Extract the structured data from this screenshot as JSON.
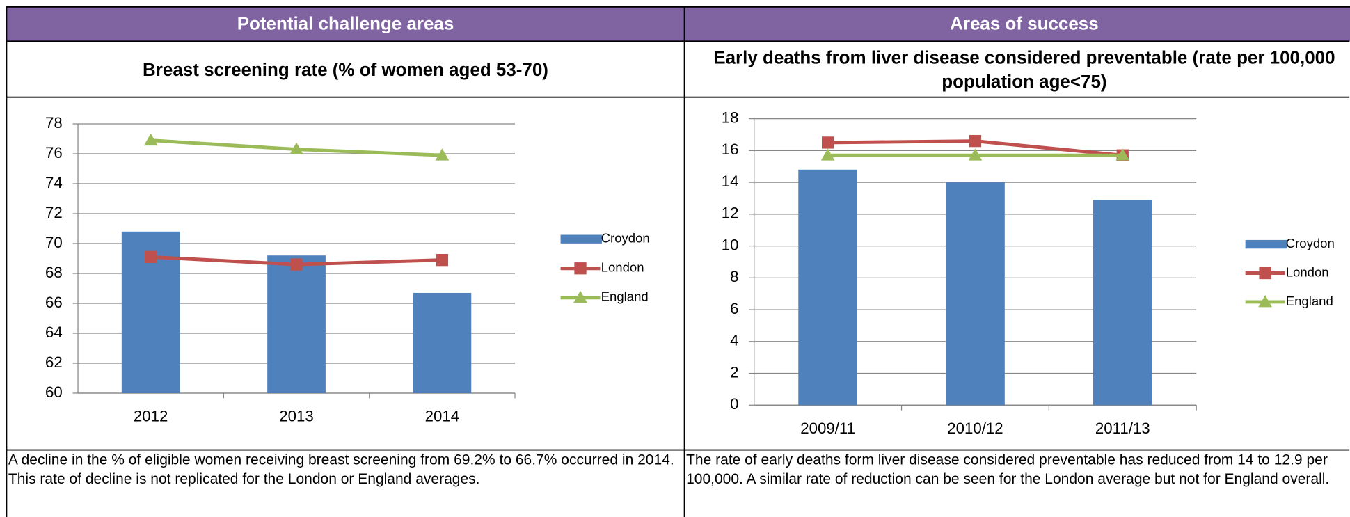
{
  "headers": [
    "Potential challenge areas",
    "Areas of success"
  ],
  "notes": [
    "A decline in the % of eligible women receiving breast screening from 69.2% to 66.7% occurred in 2014. This rate of decline is not replicated for the London or England averages.",
    "The rate of early deaths form liver disease considered preventable has  reduced from 14 to 12.9 per 100,000. A similar rate of reduction can be seen for the London average but not for England overall."
  ],
  "chart_data": [
    {
      "type": "bar",
      "title": "Breast screening rate (% of women aged 53-70)",
      "categories": [
        "2012",
        "2013",
        "2014"
      ],
      "series": [
        {
          "name": "Croydon",
          "type": "bar",
          "color": "#4f81bd",
          "values": [
            70.8,
            69.2,
            66.7
          ]
        },
        {
          "name": "London",
          "type": "line",
          "marker": "square",
          "color": "#c0504d",
          "values": [
            69.1,
            68.6,
            68.9
          ]
        },
        {
          "name": "England",
          "type": "line",
          "marker": "triangle",
          "color": "#9bbb59",
          "values": [
            76.9,
            76.3,
            75.9
          ]
        }
      ],
      "ylim": [
        60,
        78
      ],
      "yticks": [
        60,
        62,
        64,
        66,
        68,
        70,
        72,
        74,
        76,
        78
      ],
      "grid": true,
      "legend": "right"
    },
    {
      "type": "bar",
      "title": "Early deaths from liver disease considered preventable (rate per 100,000 population age<75)",
      "categories": [
        "2009/11",
        "2010/12",
        "2011/13"
      ],
      "series": [
        {
          "name": "Croydon",
          "type": "bar",
          "color": "#4f81bd",
          "values": [
            14.8,
            14.0,
            12.9
          ]
        },
        {
          "name": "London",
          "type": "line",
          "marker": "square",
          "color": "#c0504d",
          "values": [
            16.5,
            16.6,
            15.7
          ]
        },
        {
          "name": "England",
          "type": "line",
          "marker": "triangle",
          "color": "#9bbb59",
          "values": [
            15.7,
            15.7,
            15.7
          ]
        }
      ],
      "ylim": [
        0,
        18
      ],
      "yticks": [
        0,
        2,
        4,
        6,
        8,
        10,
        12,
        14,
        16,
        18
      ],
      "grid": true,
      "legend": "right"
    }
  ]
}
